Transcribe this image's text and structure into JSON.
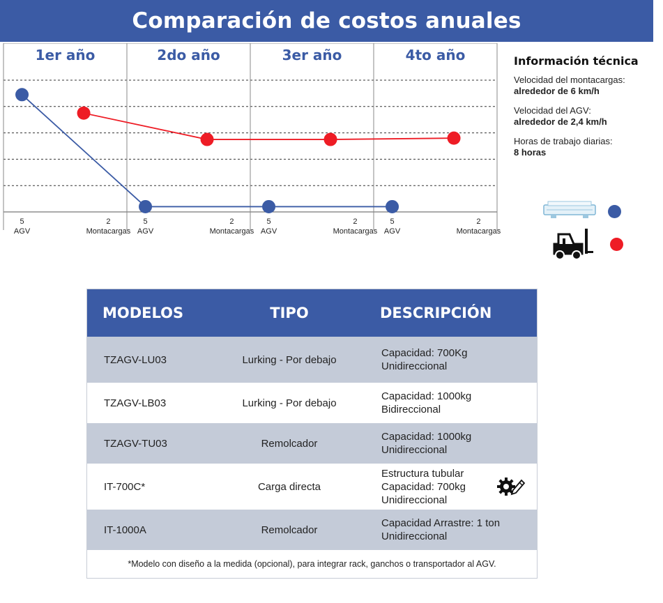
{
  "title": "Comparación de costos anuales",
  "chart_data": {
    "type": "line",
    "periods": [
      "1er año",
      "2do año",
      "3er año",
      "4to año"
    ],
    "x_ticks": [
      {
        "top": "5",
        "bottom": "AGV"
      },
      {
        "top": "2",
        "bottom": "Montacargas"
      },
      {
        "top": "5",
        "bottom": "AGV"
      },
      {
        "top": "2",
        "bottom": "Montacargas"
      },
      {
        "top": "5",
        "bottom": "AGV"
      },
      {
        "top": "2",
        "bottom": "Montacargas"
      },
      {
        "top": "5",
        "bottom": "AGV"
      },
      {
        "top": "2",
        "bottom": "Montacargas"
      }
    ],
    "ylim": [
      0,
      5
    ],
    "grid_levels": [
      1,
      2,
      3,
      4,
      5
    ],
    "series": [
      {
        "color": "#3b5ba5",
        "points": [
          [
            0.15,
            4.45
          ],
          [
            1.15,
            0.2
          ],
          [
            2.15,
            0.2
          ],
          [
            3.15,
            0.2
          ]
        ]
      },
      {
        "color": "#ee1c25",
        "points": [
          [
            0.65,
            3.75
          ],
          [
            1.65,
            2.75
          ],
          [
            2.65,
            2.75
          ],
          [
            3.65,
            2.8
          ]
        ]
      }
    ],
    "grid": true
  },
  "info": {
    "title": "Información técnica",
    "items": [
      {
        "label": "Velocidad del montacargas:",
        "value": "alrededor de 6 km/h"
      },
      {
        "label": "Velocidad del AGV:",
        "value": "alrededor de 2,4 km/h"
      },
      {
        "label": "Horas de trabajo diarias:",
        "value": "8 horas"
      }
    ]
  },
  "legend": [
    {
      "icon": "agv-icon",
      "color": "#3b5ba5"
    },
    {
      "icon": "forklift-icon",
      "color": "#ee1c25"
    }
  ],
  "table": {
    "headers": [
      "MODELOS",
      "TIPO",
      "DESCRIPCIÓN"
    ],
    "rows": [
      {
        "model": "TZAGV-LU03",
        "type": "Lurking - Por debajo",
        "desc": [
          "Capacidad: 700Kg",
          "Unidireccional"
        ]
      },
      {
        "model": "TZAGV-LB03",
        "type": "Lurking - Por debajo",
        "desc": [
          "Capacidad: 1000kg",
          "Bidireccional"
        ]
      },
      {
        "model": "TZAGV-TU03",
        "type": "Remolcador",
        "desc": [
          "Capacidad: 1000kg",
          "Unidireccional"
        ]
      },
      {
        "model": "IT-700C*",
        "type": "Carga directa",
        "desc": [
          "Estructura tubular",
          "Capacidad: 700kg",
          "Unidireccional"
        ],
        "icon": "gear-pencil-icon"
      },
      {
        "model": "IT-1000A",
        "type": "Remolcador",
        "desc": [
          "Capacidad Arrastre:  1 ton",
          "Unidireccional"
        ]
      }
    ],
    "note": "*Modelo con diseño a la medida (opcional),  para integrar rack, ganchos o transportador al AGV."
  }
}
